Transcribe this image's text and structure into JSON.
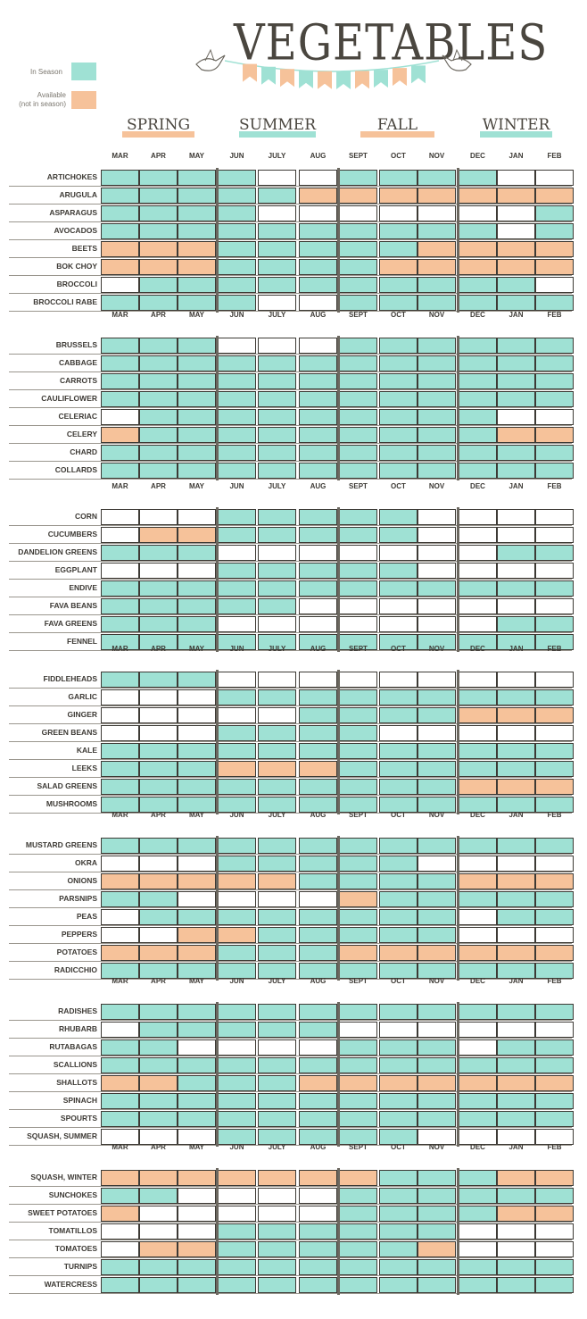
{
  "title": "VEGETABLES",
  "legend": [
    {
      "label": "In Season",
      "color": "#9fe1d4"
    },
    {
      "label": "Available\n(not in season)",
      "color": "#f6c29a"
    }
  ],
  "colors": {
    "in_season": "#9fe1d4",
    "available": "#f6c29a",
    "none": "#ffffff",
    "ribbon_peach": "#f6c29a",
    "ribbon_teal": "#9fe1d4"
  },
  "seasons": [
    {
      "name": "SPRING",
      "ribbon": "peach"
    },
    {
      "name": "SUMMER",
      "ribbon": "teal"
    },
    {
      "name": "FALL",
      "ribbon": "peach"
    },
    {
      "name": "WINTER",
      "ribbon": "teal"
    }
  ],
  "months": [
    "MAR",
    "APR",
    "MAY",
    "JUN",
    "JULY",
    "AUG",
    "SEPT",
    "OCT",
    "NOV",
    "DEC",
    "JAN",
    "FEB"
  ],
  "chart_data": {
    "type": "table",
    "title": "VEGETABLES",
    "legend": {
      "S": "In Season",
      "A": "Available (not in season)",
      "N": ""
    },
    "columns": [
      "MAR",
      "APR",
      "MAY",
      "JUN",
      "JULY",
      "AUG",
      "SEPT",
      "OCT",
      "NOV",
      "DEC",
      "JAN",
      "FEB"
    ],
    "groups": [
      [
        {
          "name": "ARTICHOKES",
          "m": "SSSSNNSSSSNN"
        },
        {
          "name": "ARUGULA",
          "m": "SSSSSAAAAAAA"
        },
        {
          "name": "ASPARAGUS",
          "m": "SSSSNNNNNNNS"
        },
        {
          "name": "AVOCADOS",
          "m": "SSSSSSSSSSNS"
        },
        {
          "name": "BEETS",
          "m": "AAASSSSSAAAA"
        },
        {
          "name": "BOK CHOY",
          "m": "AAASSSSAAAAA"
        },
        {
          "name": "BROCCOLI",
          "m": "NSSSSSSSSSSN"
        },
        {
          "name": "BROCCOLI RABE",
          "m": "SSSSNNSSSSSS"
        }
      ],
      [
        {
          "name": "BRUSSELS",
          "m": "SSSNNNSSSSSS"
        },
        {
          "name": "CABBAGE",
          "m": "SSSSSSSSSSSS"
        },
        {
          "name": "CARROTS",
          "m": "SSSSSSSSSSSS"
        },
        {
          "name": "CAULIFLOWER",
          "m": "SSSSSSSSSSSS"
        },
        {
          "name": "CELERIAC",
          "m": "NSSSSSSSSSNN"
        },
        {
          "name": "CELERY",
          "m": "ASSSSSSSSSAA"
        },
        {
          "name": "CHARD",
          "m": "SSSSSSSSSSSS"
        },
        {
          "name": "COLLARDS",
          "m": "SSSSSSSSSSSS"
        }
      ],
      [
        {
          "name": "CORN",
          "m": "NNNSSSSSNNNN"
        },
        {
          "name": "CUCUMBERS",
          "m": "NAASSSSSNNNN"
        },
        {
          "name": "DANDELION GREENS",
          "m": "SSSNNNNNNNSS"
        },
        {
          "name": "EGGPLANT",
          "m": "NNNSSSSSNNNN"
        },
        {
          "name": "ENDIVE",
          "m": "SSSSSSSSSSSS"
        },
        {
          "name": "FAVA BEANS",
          "m": "SSSSSNNNNNNN"
        },
        {
          "name": "FAVA GREENS",
          "m": "SSSNNNNNNNSS"
        },
        {
          "name": "FENNEL",
          "m": "SSSSSSSSSSSS"
        }
      ],
      [
        {
          "name": "FIDDLEHEADS",
          "m": "SSSNNNNNNNNN"
        },
        {
          "name": "GARLIC",
          "m": "NNNSSSSSSSSS"
        },
        {
          "name": "GINGER",
          "m": "NNNNNSSSSAAA"
        },
        {
          "name": "GREEN BEANS",
          "m": "NNNSSSSNNNNN"
        },
        {
          "name": "KALE",
          "m": "SSSSSSSSSSSS"
        },
        {
          "name": "LEEKS",
          "m": "SSSAAASSSSSS"
        },
        {
          "name": "SALAD GREENS",
          "m": "SSSSSSSSSAAA"
        },
        {
          "name": "MUSHROOMS",
          "m": "SSSSSSSSSSSS"
        }
      ],
      [
        {
          "name": "MUSTARD GREENS",
          "m": "SSSSSSSSSSSS"
        },
        {
          "name": "OKRA",
          "m": "NNNSSSSSNNNN"
        },
        {
          "name": "ONIONS",
          "m": "AAAAASSSSAAA"
        },
        {
          "name": "PARSNIPS",
          "m": "SSNNNNASSSSS"
        },
        {
          "name": "PEAS",
          "m": "NSSSSSSSSNSS"
        },
        {
          "name": "PEPPERS",
          "m": "NNAASSSSSNNN"
        },
        {
          "name": "POTATOES",
          "m": "AAASSSAAAAAA"
        },
        {
          "name": "RADICCHIO",
          "m": "SSSSSSSSSSSS"
        }
      ],
      [
        {
          "name": "RADISHES",
          "m": "SSSSSSSSSSSS"
        },
        {
          "name": "RHUBARB",
          "m": "NSSSSSNNNNNN"
        },
        {
          "name": "RUTABAGAS",
          "m": "SSNNNNSSSNSS"
        },
        {
          "name": "SCALLIONS",
          "m": "SSSSSSSSSSSS"
        },
        {
          "name": "SHALLOTS",
          "m": "AASSSAAAAAAA"
        },
        {
          "name": "SPINACH",
          "m": "SSSSSSSSSSSS"
        },
        {
          "name": "SPOURTS",
          "m": "SSSSSSSSSSSS"
        },
        {
          "name": "SQUASH, SUMMER",
          "m": "NNNSSSSSNNNN"
        }
      ],
      [
        {
          "name": "SQUASH, WINTER",
          "m": "AAAAAAASSSAA"
        },
        {
          "name": "SUNCHOKES",
          "m": "SSNNNNSSSSSS"
        },
        {
          "name": "SWEET POTATOES",
          "m": "ANNNNNSSSSAA"
        },
        {
          "name": "TOMATILLOS",
          "m": "NNNSSSSSSNNN"
        },
        {
          "name": "TOMATOES",
          "m": "NAASSSSSANNN"
        },
        {
          "name": "TURNIPS",
          "m": "SSSSSSSSSSSS"
        },
        {
          "name": "WATERCRESS",
          "m": "SSSSSSSSSSSS"
        }
      ]
    ]
  }
}
